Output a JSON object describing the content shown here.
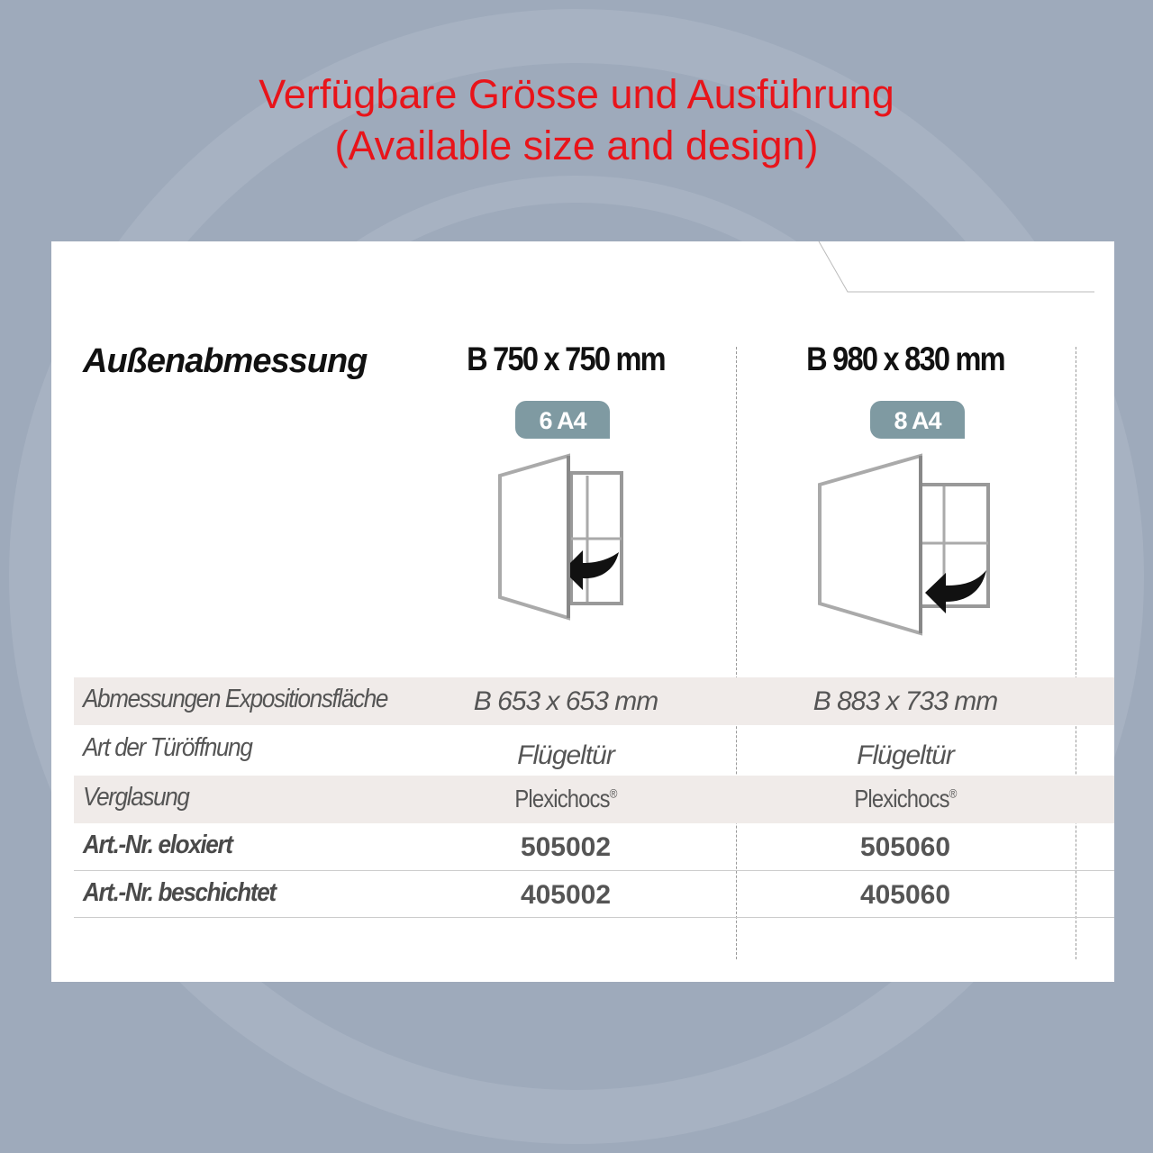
{
  "title": {
    "line1": "Verfügbare Grösse und Ausführung",
    "line2": "(Available size and design)"
  },
  "colors": {
    "title": "#e8141a",
    "background": "#9eaabb",
    "badge": "#7f9aa2",
    "row_shade": "#f0ebe9"
  },
  "table": {
    "header_label": "Außenabmessung",
    "columns": [
      {
        "size": "B 750 x 750 mm",
        "badge": "6 A4",
        "icon": "swing-door-cabinet-icon"
      },
      {
        "size": "B 980 x 830 mm",
        "badge": "8 A4",
        "icon": "swing-door-cabinet-icon"
      }
    ],
    "rows": [
      {
        "label": "Abmessungen Expositionsfläche",
        "values": [
          "B 653 x 653 mm",
          "B 883 x 733 mm"
        ]
      },
      {
        "label": "Art der Türöffnung",
        "values": [
          "Flügeltür",
          "Flügeltür"
        ]
      },
      {
        "label": "Verglasung",
        "values": [
          "Plexichocs",
          "Plexichocs"
        ],
        "suffix": "®"
      },
      {
        "label": "Art.-Nr. eloxiert",
        "values": [
          "505002",
          "505060"
        ]
      },
      {
        "label": "Art.-Nr. beschichtet",
        "values": [
          "405002",
          "405060"
        ]
      }
    ]
  }
}
